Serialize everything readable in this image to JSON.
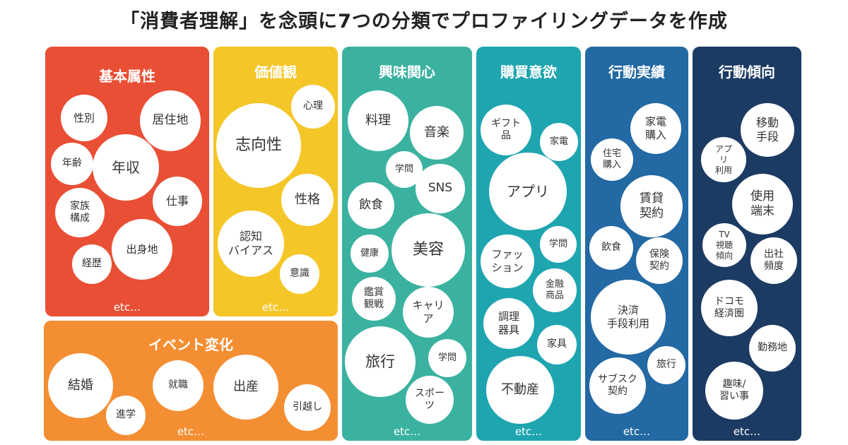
{
  "title": "「消費者理解」を念頭に7つの分類でプロファイリングデータを作成",
  "colors": {
    "basic": "#e94f35",
    "values": "#f5c628",
    "interest": "#3bb2a0",
    "purchase": "#1ea5b0",
    "behavior": "#2369a3",
    "tendency": "#1c3b63",
    "events": "#f48e32"
  },
  "panels": {
    "basic": {
      "title": "基本属性",
      "etc": "etc…",
      "bubbles": [
        "性別",
        "居住地",
        "年齢",
        "年収",
        "家族\n構成",
        "仕事",
        "出身地",
        "経歴"
      ]
    },
    "values": {
      "title": "価値観",
      "etc": "etc…",
      "bubbles": [
        "心理",
        "志向性",
        "性格",
        "認知\nバイアス",
        "意識"
      ]
    },
    "interest": {
      "title": "興味関心",
      "etc": "etc…",
      "bubbles": [
        "料理",
        "音楽",
        "学問",
        "SNS",
        "飲食",
        "健康",
        "美容",
        "鑑賞\n観戦",
        "キャリ\nア",
        "旅行",
        "学問",
        "スポー\nツ"
      ]
    },
    "purchase": {
      "title": "購買意欲",
      "etc": "etc…",
      "bubbles": [
        "ギフト\n品",
        "家電",
        "アプリ",
        "ファッ\nション",
        "学問",
        "金融\n商品",
        "調理\n器具",
        "家具",
        "不動産"
      ]
    },
    "behavior": {
      "title": "行動実績",
      "etc": "etc…",
      "bubbles": [
        "家電\n購入",
        "住宅\n購入",
        "賃貸\n契約",
        "飲食",
        "保険\n契約",
        "決済\n手段利用",
        "旅行",
        "サブスク\n契約"
      ]
    },
    "tendency": {
      "title": "行動傾向",
      "etc": "etc…",
      "bubbles": [
        "移動\n手段",
        "アプ\nリ\n利用",
        "使用\n端末",
        "TV\n視聴\n傾向",
        "出社\n頻度",
        "ドコモ\n経済圏",
        "勤務地",
        "趣味/\n習い事"
      ]
    },
    "events": {
      "title": "イベント変化",
      "etc": "etc…",
      "bubbles": [
        "結婚",
        "就職",
        "出産",
        "進学",
        "引越し"
      ]
    }
  }
}
